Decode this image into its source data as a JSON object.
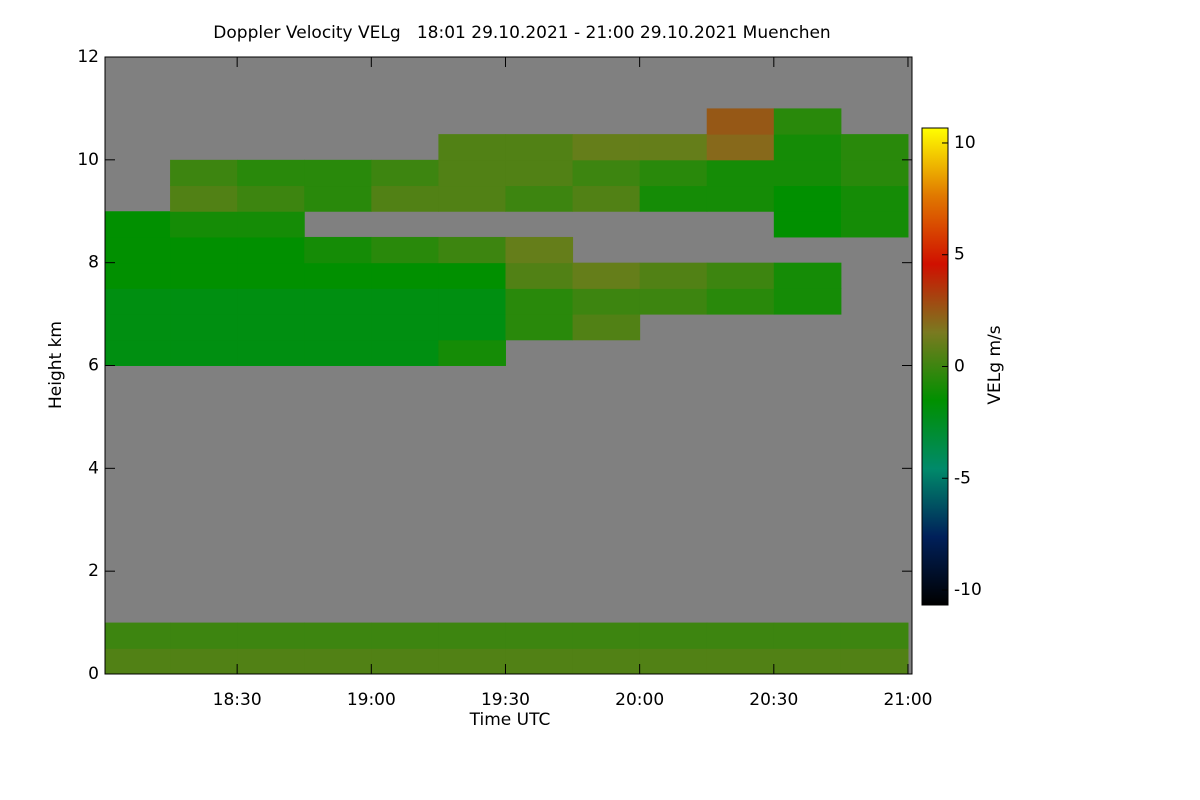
{
  "chart_data": {
    "type": "heatmap",
    "title": "Doppler Velocity VELg   18:01 29.10.2021 - 21:00 29.10.2021 Muenchen",
    "x_label": "Time UTC",
    "y_label": "Height km",
    "colorbar_label": "VELg m/s",
    "xlim": [
      18.0075,
      21.015
    ],
    "ylim": [
      0,
      12
    ],
    "zlim": [
      -10.67,
      10.67
    ],
    "xticks": [
      {
        "value": 18.5,
        "label": "18:30"
      },
      {
        "value": 19.0,
        "label": "19:00"
      },
      {
        "value": 19.5,
        "label": "19:30"
      },
      {
        "value": 20.0,
        "label": "20:00"
      },
      {
        "value": 20.5,
        "label": "20:30"
      },
      {
        "value": 21.0,
        "label": "21:00"
      }
    ],
    "yticks": [
      0,
      2,
      4,
      6,
      8,
      10,
      12
    ],
    "zticks": [
      -10,
      -5,
      0,
      5,
      10
    ],
    "colormap": [
      "#000000",
      "#00205a",
      "#008a6a",
      "#009000",
      "#7a7a20",
      "#d01000",
      "#e07800",
      "#ffff00"
    ],
    "missing_color": "#808080",
    "x_edges": [
      18.0075,
      18.25,
      18.5,
      18.75,
      19.0,
      19.25,
      19.5,
      19.75,
      20.0,
      20.25,
      20.5,
      20.75,
      21.0
    ],
    "y_edges": [
      0,
      0.5,
      1.0,
      1.5,
      2.0,
      2.5,
      3.0,
      3.5,
      4.0,
      4.5,
      5.0,
      5.5,
      6.0,
      6.5,
      7.0,
      7.5,
      8.0,
      8.5,
      9.0,
      9.5,
      10.0,
      10.5,
      11.0,
      11.5,
      12.0
    ],
    "z": [
      [
        0.5,
        0.5,
        0.5,
        0.5,
        0.5,
        0.5,
        0.5,
        0.5,
        0.5,
        0.5,
        0.5,
        0.5
      ],
      [
        0,
        0,
        0,
        0,
        0,
        0,
        0,
        0,
        0,
        0,
        0,
        0
      ],
      [
        null,
        null,
        null,
        null,
        null,
        null,
        null,
        null,
        null,
        null,
        null,
        null
      ],
      [
        null,
        null,
        null,
        null,
        null,
        null,
        null,
        null,
        null,
        null,
        null,
        null
      ],
      [
        null,
        null,
        null,
        null,
        null,
        null,
        null,
        null,
        null,
        null,
        null,
        null
      ],
      [
        null,
        null,
        null,
        null,
        null,
        null,
        null,
        null,
        null,
        null,
        null,
        null
      ],
      [
        null,
        null,
        null,
        null,
        null,
        null,
        null,
        null,
        null,
        null,
        null,
        null
      ],
      [
        null,
        null,
        null,
        null,
        null,
        null,
        null,
        null,
        null,
        null,
        null,
        null
      ],
      [
        null,
        null,
        null,
        null,
        null,
        null,
        null,
        null,
        null,
        null,
        null,
        null
      ],
      [
        null,
        null,
        null,
        null,
        null,
        null,
        null,
        null,
        null,
        null,
        null,
        null
      ],
      [
        null,
        null,
        null,
        null,
        null,
        null,
        null,
        null,
        null,
        null,
        null,
        null
      ],
      [
        null,
        null,
        null,
        null,
        null,
        null,
        null,
        null,
        null,
        null,
        null,
        null
      ],
      [
        -2,
        -2,
        -2,
        -2,
        -2,
        -1,
        null,
        null,
        null,
        null,
        null,
        null
      ],
      [
        -2,
        -2,
        -2,
        -2,
        -2,
        -2,
        -0.5,
        0.5,
        null,
        null,
        null,
        null
      ],
      [
        -2,
        -2,
        -2,
        -2,
        -2,
        -2,
        -0.5,
        0,
        0,
        -0.5,
        -1,
        null
      ],
      [
        -1.5,
        -1.5,
        -1.5,
        -1.5,
        -1.5,
        -1.5,
        0.5,
        1,
        0.5,
        0,
        -1,
        null
      ],
      [
        -1.5,
        -1.5,
        -1.5,
        -1,
        -0.5,
        0,
        1,
        null,
        null,
        null,
        null,
        null
      ],
      [
        -1.5,
        -1,
        -1,
        null,
        null,
        null,
        null,
        null,
        null,
        null,
        -1.5,
        -1
      ],
      [
        null,
        0.5,
        0,
        -0.5,
        0.5,
        0.5,
        0,
        0.5,
        -1,
        -1,
        -1.5,
        -1
      ],
      [
        null,
        0,
        -0.5,
        -0.5,
        0,
        0.5,
        0.5,
        0,
        -0.5,
        -1,
        -1,
        -0.5
      ],
      [
        null,
        null,
        null,
        null,
        null,
        0.5,
        0.5,
        1,
        1,
        2,
        -1,
        -0.5
      ],
      [
        null,
        null,
        null,
        null,
        null,
        null,
        null,
        null,
        null,
        2.5,
        -0.5,
        null
      ],
      [
        null,
        null,
        null,
        null,
        null,
        null,
        null,
        null,
        null,
        null,
        null,
        null
      ],
      [
        null,
        null,
        null,
        null,
        null,
        null,
        null,
        null,
        null,
        null,
        null,
        null
      ]
    ]
  }
}
